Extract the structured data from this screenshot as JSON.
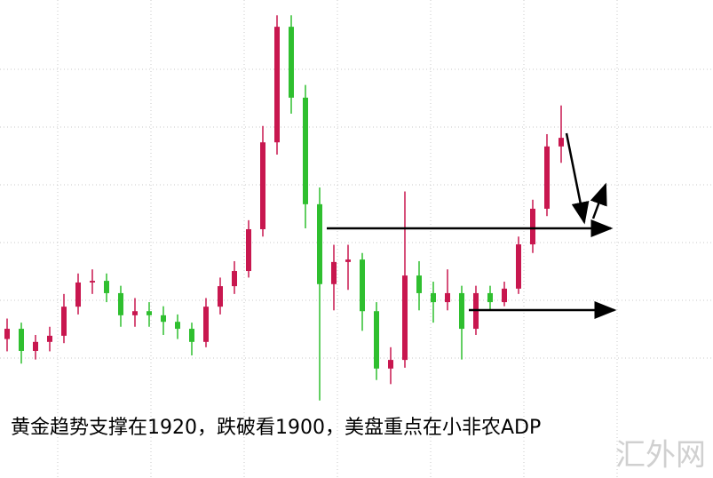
{
  "chart_data": {
    "type": "candlestick",
    "title": "黄金趋势支撑在1920，跌破看1900，美盘重点在小非农ADP",
    "watermark": "汇外网",
    "ylim": [
      1876,
      1974
    ],
    "up_color": "#c8174f",
    "down_color": "#2fbf2f",
    "ohlc": [
      [
        1893.0,
        1898,
        1890,
        1895.5
      ],
      [
        1895.5,
        1897,
        1887,
        1890.1
      ],
      [
        1890.1,
        1894,
        1888,
        1892.3
      ],
      [
        1892.3,
        1896,
        1890,
        1893.8
      ],
      [
        1893.8,
        1904,
        1892,
        1900.9
      ],
      [
        1900.9,
        1909,
        1899,
        1906.8
      ],
      [
        1906.8,
        1910,
        1904,
        1907.2
      ],
      [
        1907.2,
        1909,
        1902,
        1904.2
      ],
      [
        1904.2,
        1906,
        1896,
        1898.8
      ],
      [
        1898.8,
        1903,
        1896,
        1899.8
      ],
      [
        1899.8,
        1902,
        1896,
        1898.8
      ],
      [
        1898.8,
        1901,
        1894,
        1897.2
      ],
      [
        1897.2,
        1899,
        1893,
        1895.5
      ],
      [
        1895.5,
        1897,
        1889,
        1892.3
      ],
      [
        1892.3,
        1903,
        1891,
        1900.9
      ],
      [
        1900.9,
        1908,
        1899,
        1905.9
      ],
      [
        1905.9,
        1912,
        1904,
        1909.6
      ],
      [
        1909.6,
        1922,
        1908,
        1919.8
      ],
      [
        1919.8,
        1945,
        1918,
        1941.0
      ],
      [
        1941.0,
        1972,
        1938,
        1969.2
      ],
      [
        1969.2,
        1972,
        1948,
        1951.9
      ],
      [
        1951.9,
        1955,
        1920,
        1925.9
      ],
      [
        1925.9,
        1930,
        1878,
        1906.4
      ],
      [
        1906.4,
        1916,
        1900,
        1911.8
      ],
      [
        1911.8,
        1916,
        1905,
        1912.4
      ],
      [
        1912.4,
        1914,
        1895,
        1899.8
      ],
      [
        1899.8,
        1902,
        1883,
        1885.8
      ],
      [
        1885.8,
        1891,
        1882,
        1887.9
      ],
      [
        1887.9,
        1929,
        1886,
        1908.5
      ],
      [
        1908.5,
        1912,
        1900,
        1904.2
      ],
      [
        1904.2,
        1907,
        1897,
        1902.0
      ],
      [
        1902.0,
        1910,
        1900,
        1904.2
      ],
      [
        1904.2,
        1906,
        1888,
        1895.5
      ],
      [
        1895.5,
        1906,
        1894,
        1904.2
      ],
      [
        1904.2,
        1906,
        1900,
        1902.0
      ],
      [
        1902.0,
        1907,
        1901,
        1905.3
      ],
      [
        1905.3,
        1918,
        1904,
        1916.1
      ],
      [
        1916.1,
        1927,
        1914,
        1924.8
      ],
      [
        1924.8,
        1943,
        1923,
        1940.0
      ],
      [
        1940.0,
        1950,
        1936,
        1942.1
      ]
    ]
  }
}
